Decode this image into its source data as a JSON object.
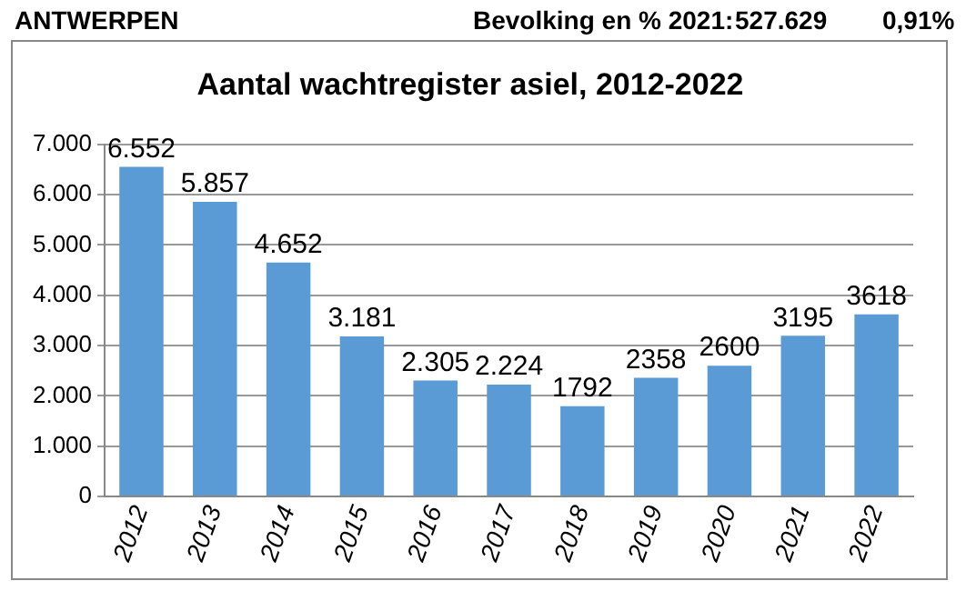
{
  "chart_data": {
    "type": "bar",
    "title": "Aantal wachtregister asiel, 2012-2022",
    "annotations": [
      "ANTWERPEN",
      "Bevolking en % 2021:",
      "527.629",
      "0,91%"
    ],
    "categories": [
      "2012",
      "2013",
      "2014",
      "2015",
      "2016",
      "2017",
      "2018",
      "2019",
      "2020",
      "2021",
      "2022"
    ],
    "values": [
      6552,
      5857,
      4652,
      3181,
      2305,
      2224,
      1792,
      2358,
      2600,
      3195,
      3618
    ],
    "value_labels": [
      "6.552",
      "5.857",
      "4.652",
      "3.181",
      "2.305",
      "2.224",
      "1792",
      "2358",
      "2600",
      "3195",
      "3618"
    ],
    "color": "#5b9bd5",
    "ylim": [
      0,
      7000
    ],
    "yticks": [
      {
        "value": 0,
        "label": "0"
      },
      {
        "value": 1000,
        "label": "1.000"
      },
      {
        "value": 2000,
        "label": "2.000"
      },
      {
        "value": 3000,
        "label": "3.000"
      },
      {
        "value": 4000,
        "label": "4.000"
      },
      {
        "value": 5000,
        "label": "5.000"
      },
      {
        "value": 6000,
        "label": "6.000"
      },
      {
        "value": 7000,
        "label": "7.000"
      }
    ],
    "grid": "y",
    "legend": false
  }
}
